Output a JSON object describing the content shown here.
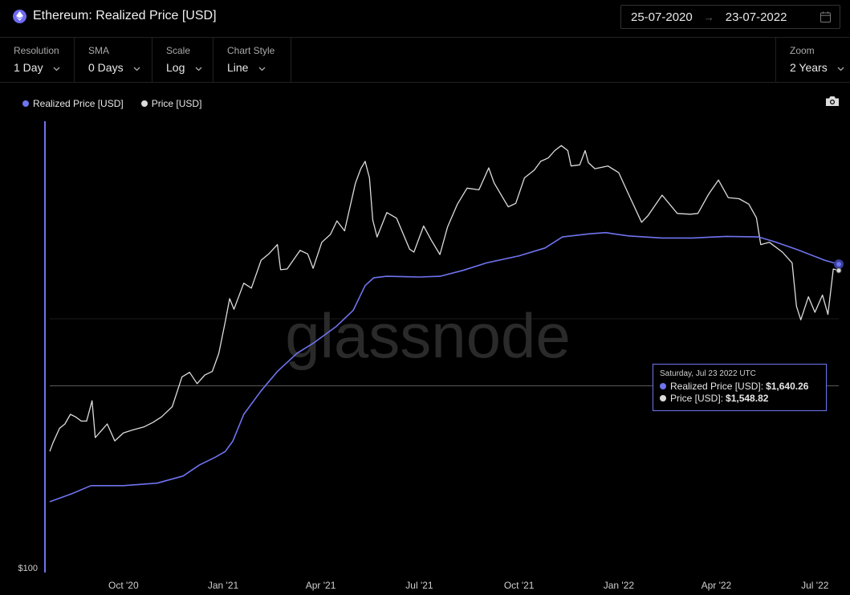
{
  "header": {
    "title": "Ethereum: Realized Price [USD]",
    "date_from": "25-07-2020",
    "date_to": "23-07-2022",
    "icons": {
      "asset": "ethereum-icon",
      "calendar": "calendar-icon",
      "arrow": "arrow-right-icon"
    }
  },
  "controls": {
    "resolution": {
      "label": "Resolution",
      "value": "1 Day"
    },
    "sma": {
      "label": "SMA",
      "value": "0 Days"
    },
    "scale": {
      "label": "Scale",
      "value": "Log"
    },
    "chart_style": {
      "label": "Chart Style",
      "value": "Line"
    },
    "zoom": {
      "label": "Zoom",
      "value": "2 Years"
    }
  },
  "legend": [
    {
      "name": "Realized Price [USD]",
      "color": "#6f74ef"
    },
    {
      "name": "Price [USD]",
      "color": "#dcdcdc"
    }
  ],
  "watermark": "glassnode",
  "tooltip": {
    "date": "Saturday, Jul 23 2022 UTC",
    "rows": [
      {
        "name": "Realized Price [USD]",
        "value": "$1,640.26",
        "color": "#6f74ef"
      },
      {
        "name": "Price [USD]",
        "value": "$1,548.82",
        "color": "#dcdcdc"
      }
    ]
  },
  "chart_data": {
    "type": "line",
    "yscale": "log",
    "ylim": [
      100,
      6000
    ],
    "x_range": [
      "2020-07-25",
      "2022-07-23"
    ],
    "y_tick_labels": [
      "$100"
    ],
    "x_tick_labels": [
      {
        "label": "Oct '20",
        "date": "2020-10-01"
      },
      {
        "label": "Jan '21",
        "date": "2021-01-01"
      },
      {
        "label": "Apr '21",
        "date": "2021-04-01"
      },
      {
        "label": "Jul '21",
        "date": "2021-07-01"
      },
      {
        "label": "Oct '21",
        "date": "2021-10-01"
      },
      {
        "label": "Jan '22",
        "date": "2022-01-01"
      },
      {
        "label": "Apr '22",
        "date": "2022-04-01"
      },
      {
        "label": "Jul '22",
        "date": "2022-07-01"
      }
    ],
    "series": [
      {
        "name": "Realized Price [USD]",
        "color": "#6f74ef",
        "points": [
          [
            "2020-07-25",
            190
          ],
          [
            "2020-08-15",
            205
          ],
          [
            "2020-09-01",
            220
          ],
          [
            "2020-09-15",
            220
          ],
          [
            "2020-10-01",
            220
          ],
          [
            "2020-11-01",
            225
          ],
          [
            "2020-11-25",
            240
          ],
          [
            "2020-12-10",
            265
          ],
          [
            "2020-12-25",
            285
          ],
          [
            "2021-01-03",
            300
          ],
          [
            "2021-01-10",
            330
          ],
          [
            "2021-01-20",
            420
          ],
          [
            "2021-02-05",
            520
          ],
          [
            "2021-02-20",
            620
          ],
          [
            "2021-03-10",
            730
          ],
          [
            "2021-03-25",
            800
          ],
          [
            "2021-04-15",
            930
          ],
          [
            "2021-05-01",
            1080
          ],
          [
            "2021-05-12",
            1350
          ],
          [
            "2021-05-20",
            1450
          ],
          [
            "2021-06-01",
            1470
          ],
          [
            "2021-07-01",
            1460
          ],
          [
            "2021-07-20",
            1470
          ],
          [
            "2021-08-10",
            1550
          ],
          [
            "2021-09-01",
            1660
          ],
          [
            "2021-10-01",
            1770
          ],
          [
            "2021-10-25",
            1900
          ],
          [
            "2021-11-10",
            2100
          ],
          [
            "2021-12-05",
            2160
          ],
          [
            "2021-12-20",
            2185
          ],
          [
            "2022-01-10",
            2120
          ],
          [
            "2022-02-10",
            2080
          ],
          [
            "2022-03-10",
            2080
          ],
          [
            "2022-04-10",
            2110
          ],
          [
            "2022-05-10",
            2100
          ],
          [
            "2022-05-25",
            2010
          ],
          [
            "2022-06-15",
            1870
          ],
          [
            "2022-07-10",
            1700
          ],
          [
            "2022-07-23",
            1640.26
          ]
        ]
      },
      {
        "name": "Price [USD]",
        "color": "#dcdcdc",
        "points": [
          [
            "2020-07-25",
            300
          ],
          [
            "2020-07-28",
            325
          ],
          [
            "2020-08-03",
            370
          ],
          [
            "2020-08-08",
            385
          ],
          [
            "2020-08-13",
            420
          ],
          [
            "2020-08-18",
            410
          ],
          [
            "2020-08-23",
            395
          ],
          [
            "2020-08-28",
            395
          ],
          [
            "2020-09-02",
            475
          ],
          [
            "2020-09-05",
            340
          ],
          [
            "2020-09-10",
            360
          ],
          [
            "2020-09-16",
            385
          ],
          [
            "2020-09-23",
            330
          ],
          [
            "2020-10-01",
            355
          ],
          [
            "2020-10-10",
            365
          ],
          [
            "2020-10-20",
            375
          ],
          [
            "2020-10-28",
            390
          ],
          [
            "2020-11-05",
            410
          ],
          [
            "2020-11-15",
            450
          ],
          [
            "2020-11-24",
            590
          ],
          [
            "2020-12-01",
            615
          ],
          [
            "2020-12-08",
            555
          ],
          [
            "2020-12-15",
            600
          ],
          [
            "2020-12-22",
            620
          ],
          [
            "2020-12-28",
            730
          ],
          [
            "2021-01-03",
            975
          ],
          [
            "2021-01-07",
            1200
          ],
          [
            "2021-01-11",
            1090
          ],
          [
            "2021-01-20",
            1380
          ],
          [
            "2021-01-27",
            1320
          ],
          [
            "2021-02-05",
            1700
          ],
          [
            "2021-02-12",
            1800
          ],
          [
            "2021-02-20",
            1960
          ],
          [
            "2021-02-23",
            1560
          ],
          [
            "2021-03-01",
            1570
          ],
          [
            "2021-03-13",
            1860
          ],
          [
            "2021-03-20",
            1800
          ],
          [
            "2021-03-25",
            1580
          ],
          [
            "2021-04-02",
            2000
          ],
          [
            "2021-04-10",
            2150
          ],
          [
            "2021-04-16",
            2430
          ],
          [
            "2021-04-23",
            2220
          ],
          [
            "2021-05-03",
            3420
          ],
          [
            "2021-05-08",
            3900
          ],
          [
            "2021-05-12",
            4170
          ],
          [
            "2021-05-16",
            3590
          ],
          [
            "2021-05-19",
            2450
          ],
          [
            "2021-05-23",
            2100
          ],
          [
            "2021-06-01",
            2620
          ],
          [
            "2021-06-10",
            2490
          ],
          [
            "2021-06-22",
            1880
          ],
          [
            "2021-06-26",
            1830
          ],
          [
            "2021-07-05",
            2320
          ],
          [
            "2021-07-12",
            2040
          ],
          [
            "2021-07-20",
            1790
          ],
          [
            "2021-07-27",
            2300
          ],
          [
            "2021-08-05",
            2820
          ],
          [
            "2021-08-14",
            3270
          ],
          [
            "2021-08-25",
            3220
          ],
          [
            "2021-09-03",
            3930
          ],
          [
            "2021-09-08",
            3430
          ],
          [
            "2021-09-21",
            2760
          ],
          [
            "2021-09-28",
            2850
          ],
          [
            "2021-10-06",
            3590
          ],
          [
            "2021-10-15",
            3850
          ],
          [
            "2021-10-21",
            4170
          ],
          [
            "2021-10-28",
            4300
          ],
          [
            "2021-11-03",
            4600
          ],
          [
            "2021-11-09",
            4810
          ],
          [
            "2021-11-15",
            4600
          ],
          [
            "2021-11-18",
            4000
          ],
          [
            "2021-11-26",
            4040
          ],
          [
            "2021-12-01",
            4600
          ],
          [
            "2021-12-04",
            4120
          ],
          [
            "2021-12-10",
            3900
          ],
          [
            "2021-12-22",
            4000
          ],
          [
            "2022-01-01",
            3760
          ],
          [
            "2022-01-10",
            3100
          ],
          [
            "2022-01-22",
            2400
          ],
          [
            "2022-01-28",
            2550
          ],
          [
            "2022-02-10",
            3070
          ],
          [
            "2022-02-24",
            2600
          ],
          [
            "2022-03-08",
            2580
          ],
          [
            "2022-03-15",
            2600
          ],
          [
            "2022-03-25",
            3100
          ],
          [
            "2022-04-03",
            3520
          ],
          [
            "2022-04-12",
            3000
          ],
          [
            "2022-04-22",
            2970
          ],
          [
            "2022-05-01",
            2830
          ],
          [
            "2022-05-08",
            2500
          ],
          [
            "2022-05-12",
            1960
          ],
          [
            "2022-05-20",
            2000
          ],
          [
            "2022-06-01",
            1830
          ],
          [
            "2022-06-10",
            1660
          ],
          [
            "2022-06-14",
            1120
          ],
          [
            "2022-06-18",
            990
          ],
          [
            "2022-06-25",
            1220
          ],
          [
            "2022-07-01",
            1060
          ],
          [
            "2022-07-08",
            1240
          ],
          [
            "2022-07-13",
            1040
          ],
          [
            "2022-07-18",
            1570
          ],
          [
            "2022-07-23",
            1548.82
          ]
        ]
      }
    ]
  }
}
